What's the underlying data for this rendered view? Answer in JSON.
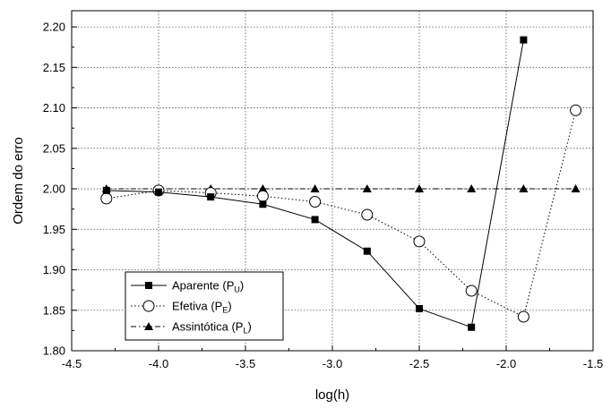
{
  "chart_data": {
    "type": "line",
    "xlabel": "log(h)",
    "ylabel": "Ordem do erro",
    "xlim": [
      -4.5,
      -1.5
    ],
    "ylim": [
      1.8,
      2.22
    ],
    "xticks": [
      -4.5,
      -4.0,
      -3.5,
      -3.0,
      -2.5,
      -2.0,
      -1.5
    ],
    "xtick_labels": [
      "-4.5",
      "-4.0",
      "-3.5",
      "-3.0",
      "-2.5",
      "-2.0",
      "-1.5"
    ],
    "yticks": [
      1.8,
      1.85,
      1.9,
      1.95,
      2.0,
      2.05,
      2.1,
      2.15,
      2.2
    ],
    "ytick_labels": [
      "1.80",
      "1.85",
      "1.90",
      "1.95",
      "2.00",
      "2.05",
      "2.10",
      "2.15",
      "2.20"
    ],
    "grid": true,
    "legend_position": "bottom-left",
    "series": [
      {
        "name": "Aparente (P",
        "sub": "U",
        "close": ")",
        "style": "solid",
        "marker": "square-filled",
        "x": [
          -4.3,
          -4.0,
          -3.7,
          -3.4,
          -3.1,
          -2.8,
          -2.5,
          -2.2,
          -1.9
        ],
        "y": [
          1.998,
          1.996,
          1.99,
          1.981,
          1.962,
          1.923,
          1.852,
          1.829,
          2.184
        ]
      },
      {
        "name": "Efetiva (P",
        "sub": "E",
        "close": ")",
        "style": "dotted",
        "marker": "circle-open",
        "x": [
          -4.3,
          -4.0,
          -3.7,
          -3.4,
          -3.1,
          -2.8,
          -2.5,
          -2.2,
          -1.9,
          -1.6
        ],
        "y": [
          1.988,
          1.998,
          1.995,
          1.991,
          1.984,
          1.968,
          1.935,
          1.874,
          1.842,
          2.097
        ]
      },
      {
        "name": "Assintótica (P",
        "sub": "L",
        "close": ")",
        "style": "dashdot",
        "marker": "triangle-filled",
        "x": [
          -4.3,
          -4.0,
          -3.7,
          -3.4,
          -3.1,
          -2.8,
          -2.5,
          -2.2,
          -1.9,
          -1.6
        ],
        "y": [
          2.0,
          2.0,
          2.0,
          2.0,
          2.0,
          2.0,
          2.0,
          2.0,
          2.0,
          2.0
        ]
      }
    ]
  }
}
